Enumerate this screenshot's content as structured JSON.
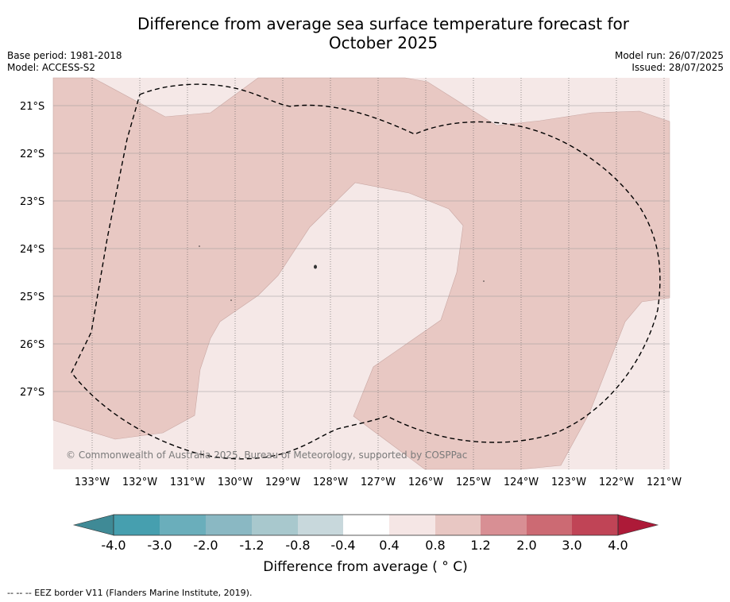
{
  "title_line1": "Difference from average sea surface temperature forecast for",
  "title_line2": "October 2025",
  "meta": {
    "base_period": "Base period: 1981-2018",
    "model": "Model: ACCESS-S2",
    "model_run": "Model run: 26/07/2025",
    "issued": "Issued: 28/07/2025"
  },
  "copyright": "© Commonwealth of Australia 2025, Bureau of Meteorology, supported by COSPPac",
  "axes": {
    "lat_labels": [
      "21°S",
      "22°S",
      "23°S",
      "24°S",
      "25°S",
      "26°S",
      "27°S"
    ],
    "lon_labels": [
      "133°W",
      "132°W",
      "131°W",
      "130°W",
      "129°W",
      "128°W",
      "127°W",
      "126°W",
      "125°W",
      "124°W",
      "123°W",
      "122°W",
      "121°W"
    ]
  },
  "legend": {
    "label": "Difference from average ( ° C)",
    "tick_labels": [
      "-4.0",
      "-3.0",
      "-2.0",
      "-1.2",
      "-0.8",
      "-0.4",
      "0.4",
      "0.8",
      "1.2",
      "2.0",
      "3.0",
      "4.0"
    ],
    "colors": [
      "#3f8a96",
      "#469faf",
      "#6aaebb",
      "#8ab8c3",
      "#a8c8cd",
      "#c8d8dc",
      "#ffffff",
      "#f5e6e5",
      "#e8c7c3",
      "#d88f94",
      "#cc6a73",
      "#c04456",
      "#ad1a38"
    ]
  },
  "map_fill": {
    "low_class_color": "#f5e8e7",
    "high_class_color": "#e8c8c3"
  },
  "footer": "--  --  -- EEZ border V11 (Flanders Marine Institute, 2019)."
}
